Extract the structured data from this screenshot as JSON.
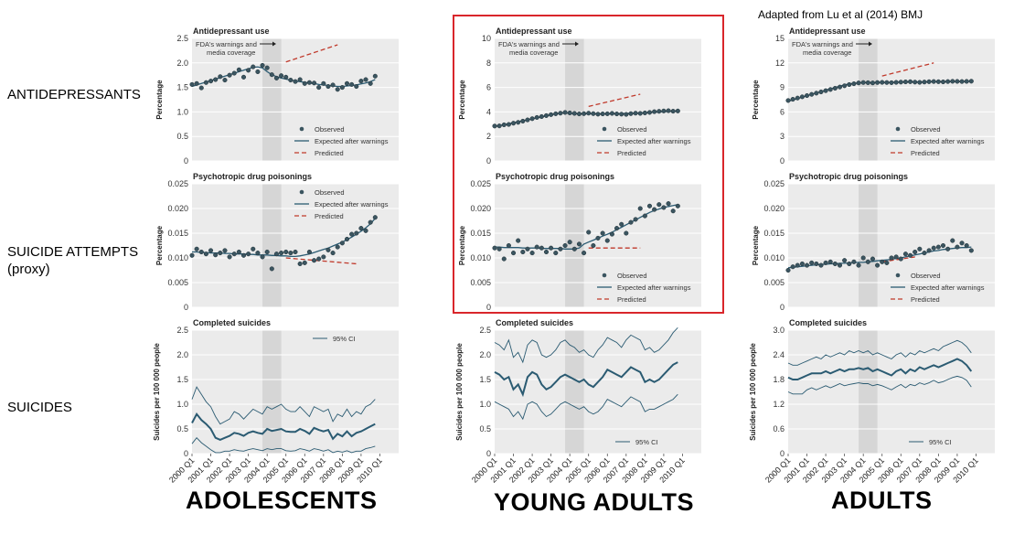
{
  "credit": "Adapted from  Lu et al (2014) BMJ",
  "row_labels": {
    "antidepressants": "ANTIDEPRESSANTS",
    "attempts_line1": "SUICIDE ATTEMPTS",
    "attempts_line2": "(proxy)",
    "suicides": "SUICIDES"
  },
  "column_labels": {
    "adolescents": "ADOLESCENTS",
    "young_adults": "YOUNG ADULTS",
    "adults": "ADULTS"
  },
  "annotation": {
    "line1": "FDA's warnings and",
    "line2": "media coverage"
  },
  "legend": {
    "observed": "Observed",
    "expected": "Expected after warnings",
    "predicted": "Predicted",
    "ci": "95% CI"
  },
  "time_axis": {
    "ticks": [
      "2000 Q1",
      "2001 Q1",
      "2002 Q1",
      "2003 Q1",
      "2004 Q1",
      "2005 Q1",
      "2006 Q1",
      "2007 Q1",
      "2008 Q1",
      "2009 Q1",
      "2010 Q1"
    ]
  },
  "colors": {
    "panel_bg": "#ebebeb",
    "warning_band": "#d6d6d6",
    "observed": "#3b5560",
    "expected": "#2b5b72",
    "predicted": "#c0392b",
    "highlight": "#d9262b"
  },
  "chart_data": [
    {
      "type": "scatter",
      "group": "adolescents",
      "panel": "antidepressants",
      "title": "Antidepressant use",
      "ylabel": "Percentage",
      "ylim": [
        0,
        2.5
      ],
      "yticks": [
        "0",
        "0.5",
        "1.0",
        "1.5",
        "2.0",
        "2.5"
      ],
      "warning_period": [
        2003.75,
        2004.75
      ],
      "observed": [
        1.56,
        1.58,
        1.49,
        1.6,
        1.63,
        1.66,
        1.72,
        1.65,
        1.75,
        1.79,
        1.86,
        1.71,
        1.85,
        1.92,
        1.82,
        1.95,
        1.9,
        1.76,
        1.69,
        1.74,
        1.71,
        1.65,
        1.62,
        1.66,
        1.58,
        1.6,
        1.59,
        1.5,
        1.58,
        1.52,
        1.55,
        1.46,
        1.5,
        1.58,
        1.56,
        1.52,
        1.63,
        1.66,
        1.58,
        1.73
      ],
      "expected": [
        1.52,
        1.55,
        1.58,
        1.61,
        1.64,
        1.67,
        1.7,
        1.73,
        1.76,
        1.79,
        1.82,
        1.85,
        1.88,
        1.91,
        1.92,
        1.9,
        1.82,
        1.76,
        1.72,
        1.69,
        1.67,
        1.65,
        1.63,
        1.62,
        1.6,
        1.59,
        1.58,
        1.56,
        1.55,
        1.54,
        1.53,
        1.52,
        1.52,
        1.53,
        1.54,
        1.55,
        1.57,
        1.59,
        1.62,
        1.66
      ],
      "predicted": {
        "x": [
          2005.0,
          2007.75
        ],
        "y": [
          2.02,
          2.37
        ]
      },
      "legend": "bottom-right"
    },
    {
      "type": "scatter",
      "group": "young_adults",
      "panel": "antidepressants",
      "title": "Antidepressant use",
      "ylabel": "Percentage",
      "ylim": [
        0,
        10
      ],
      "yticks": [
        "0",
        "2",
        "4",
        "6",
        "8",
        "10"
      ],
      "warning_period": [
        2003.75,
        2004.75
      ],
      "observed": [
        2.85,
        2.86,
        2.95,
        2.98,
        3.08,
        3.15,
        3.25,
        3.35,
        3.45,
        3.55,
        3.62,
        3.7,
        3.78,
        3.85,
        3.9,
        3.96,
        3.92,
        3.88,
        3.84,
        3.86,
        3.9,
        3.86,
        3.82,
        3.84,
        3.85,
        3.88,
        3.84,
        3.82,
        3.8,
        3.86,
        3.9,
        3.88,
        3.92,
        3.96,
        4.02,
        4.05,
        4.08,
        4.1,
        4.06,
        4.08
      ],
      "expected": [
        2.8,
        2.88,
        2.96,
        3.04,
        3.12,
        3.2,
        3.28,
        3.36,
        3.44,
        3.52,
        3.6,
        3.68,
        3.76,
        3.84,
        3.9,
        3.92,
        3.88,
        3.86,
        3.84,
        3.84,
        3.84,
        3.84,
        3.84,
        3.84,
        3.84,
        3.85,
        3.86,
        3.87,
        3.88,
        3.89,
        3.9,
        3.92,
        3.94,
        3.96,
        3.98,
        4.0,
        4.02,
        4.04,
        4.06,
        4.08
      ],
      "predicted": {
        "x": [
          2005.0,
          2007.75
        ],
        "y": [
          4.45,
          5.45
        ]
      },
      "legend": "bottom-right"
    },
    {
      "type": "scatter",
      "group": "adults",
      "panel": "antidepressants",
      "title": "Antidepressant use",
      "ylabel": "Percentage",
      "ylim": [
        0,
        15
      ],
      "yticks": [
        "0",
        "3",
        "6",
        "9",
        "12",
        "15"
      ],
      "warning_period": [
        2003.75,
        2004.75
      ],
      "observed": [
        7.4,
        7.55,
        7.7,
        7.85,
        8.0,
        8.15,
        8.3,
        8.45,
        8.6,
        8.75,
        8.9,
        9.05,
        9.2,
        9.35,
        9.45,
        9.55,
        9.6,
        9.58,
        9.55,
        9.6,
        9.62,
        9.6,
        9.58,
        9.62,
        9.65,
        9.68,
        9.7,
        9.65,
        9.62,
        9.66,
        9.7,
        9.72,
        9.7,
        9.68,
        9.72,
        9.75,
        9.74,
        9.72,
        9.74,
        9.76
      ],
      "expected": [
        7.3,
        7.47,
        7.64,
        7.81,
        7.98,
        8.15,
        8.32,
        8.49,
        8.66,
        8.83,
        9.0,
        9.15,
        9.3,
        9.42,
        9.5,
        9.56,
        9.58,
        9.58,
        9.59,
        9.6,
        9.61,
        9.62,
        9.63,
        9.64,
        9.65,
        9.66,
        9.66,
        9.66,
        9.66,
        9.67,
        9.68,
        9.69,
        9.7,
        9.7,
        9.71,
        9.72,
        9.72,
        9.73,
        9.74,
        9.75
      ],
      "predicted": {
        "x": [
          2005.0,
          2007.75
        ],
        "y": [
          10.4,
          12.0
        ]
      },
      "legend": "bottom-right"
    },
    {
      "type": "scatter",
      "group": "adolescents",
      "panel": "poisonings",
      "title": "Psychotropic drug poisonings",
      "ylabel": "Percentage",
      "ylim": [
        0,
        0.025
      ],
      "yticks": [
        "0",
        "0.005",
        "0.010",
        "0.015",
        "0.020",
        "0.025"
      ],
      "warning_period": [
        2003.75,
        2004.75
      ],
      "observed": [
        0.0105,
        0.0118,
        0.0112,
        0.0108,
        0.0115,
        0.0106,
        0.011,
        0.0115,
        0.0102,
        0.0108,
        0.0112,
        0.0105,
        0.0108,
        0.0118,
        0.011,
        0.0102,
        0.0112,
        0.0078,
        0.0108,
        0.011,
        0.0112,
        0.011,
        0.0112,
        0.0088,
        0.009,
        0.0112,
        0.0095,
        0.0098,
        0.0102,
        0.0116,
        0.011,
        0.0122,
        0.013,
        0.0138,
        0.0148,
        0.015,
        0.016,
        0.0155,
        0.0172,
        0.0182
      ],
      "expected": [
        0.0112,
        0.0112,
        0.0111,
        0.0111,
        0.011,
        0.011,
        0.011,
        0.0109,
        0.0109,
        0.0108,
        0.0108,
        0.0108,
        0.0107,
        0.0107,
        0.0106,
        0.0106,
        0.0106,
        0.0105,
        0.0105,
        0.0104,
        0.0104,
        0.0103,
        0.0103,
        0.0104,
        0.0106,
        0.0108,
        0.0111,
        0.0114,
        0.0117,
        0.012,
        0.0124,
        0.0128,
        0.0132,
        0.0137,
        0.0142,
        0.0148,
        0.0154,
        0.0161,
        0.0169,
        0.018
      ],
      "predicted": {
        "x": [
          2005.0,
          2008.75
        ],
        "y": [
          0.01,
          0.0088
        ]
      },
      "legend": "top-right"
    },
    {
      "type": "scatter",
      "group": "young_adults",
      "panel": "poisonings",
      "title": "Psychotropic drug poisonings",
      "ylabel": "Percentage",
      "ylim": [
        0,
        0.025
      ],
      "yticks": [
        "0",
        "0.005",
        "0.010",
        "0.015",
        "0.020",
        "0.025"
      ],
      "warning_period": [
        2003.75,
        2004.75
      ],
      "observed": [
        0.012,
        0.0118,
        0.0098,
        0.0125,
        0.011,
        0.0135,
        0.0112,
        0.0118,
        0.011,
        0.0122,
        0.012,
        0.0112,
        0.012,
        0.011,
        0.0118,
        0.0125,
        0.0132,
        0.0118,
        0.0128,
        0.011,
        0.0152,
        0.0125,
        0.014,
        0.015,
        0.0135,
        0.0148,
        0.016,
        0.0168,
        0.015,
        0.0172,
        0.0178,
        0.02,
        0.0185,
        0.0205,
        0.0198,
        0.0208,
        0.0202,
        0.021,
        0.0195,
        0.0205
      ],
      "expected": [
        0.0122,
        0.0122,
        0.0121,
        0.0121,
        0.0121,
        0.0121,
        0.012,
        0.012,
        0.012,
        0.012,
        0.0119,
        0.0119,
        0.0119,
        0.0119,
        0.0119,
        0.0118,
        0.0118,
        0.0118,
        0.012,
        0.0128,
        0.0132,
        0.0136,
        0.014,
        0.0144,
        0.0148,
        0.0152,
        0.0157,
        0.0162,
        0.0167,
        0.0172,
        0.0177,
        0.0182,
        0.0187,
        0.0192,
        0.0196,
        0.0199,
        0.0202,
        0.0204,
        0.0206,
        0.0208
      ],
      "predicted": {
        "x": [
          2005.0,
          2007.75
        ],
        "y": [
          0.012,
          0.012
        ]
      },
      "legend": "bottom-right"
    },
    {
      "type": "scatter",
      "group": "adults",
      "panel": "poisonings",
      "title": "Psychotropic drug poisonings",
      "ylabel": "Percentage",
      "ylim": [
        0,
        0.025
      ],
      "yticks": [
        "0",
        "0.005",
        "0.010",
        "0.015",
        "0.020",
        "0.025"
      ],
      "warning_period": [
        2003.75,
        2004.75
      ],
      "observed": [
        0.0075,
        0.0082,
        0.0085,
        0.0088,
        0.0085,
        0.009,
        0.0088,
        0.0085,
        0.009,
        0.0092,
        0.0088,
        0.0085,
        0.0095,
        0.0088,
        0.0092,
        0.0085,
        0.01,
        0.0092,
        0.0098,
        0.0085,
        0.0092,
        0.009,
        0.01,
        0.0102,
        0.0098,
        0.0108,
        0.0105,
        0.0112,
        0.0118,
        0.011,
        0.0115,
        0.012,
        0.0122,
        0.0125,
        0.0118,
        0.0135,
        0.0122,
        0.013,
        0.0125,
        0.0115
      ],
      "expected": [
        0.008,
        0.0081,
        0.0082,
        0.0083,
        0.0084,
        0.0085,
        0.0086,
        0.0087,
        0.0087,
        0.0088,
        0.0088,
        0.0089,
        0.0089,
        0.009,
        0.009,
        0.0091,
        0.0091,
        0.0092,
        0.0093,
        0.0094,
        0.0095,
        0.0096,
        0.0097,
        0.0099,
        0.01,
        0.0102,
        0.0104,
        0.0106,
        0.0108,
        0.011,
        0.0112,
        0.0114,
        0.0115,
        0.0117,
        0.0118,
        0.0119,
        0.012,
        0.0121,
        0.0121,
        0.0122
      ],
      "predicted": {
        "x": [
          2005.0,
          2006.75
        ],
        "y": [
          0.0092,
          0.0102
        ]
      },
      "legend": "bottom-right"
    },
    {
      "type": "line",
      "group": "adolescents",
      "panel": "suicides",
      "title": "Completed suicides",
      "ylabel": "Suicides per 100 000 people",
      "ylim": [
        0,
        2.5
      ],
      "yticks": [
        "0",
        "0.5",
        "1.0",
        "1.5",
        "2.0",
        "2.5"
      ],
      "warning_period": [
        2003.75,
        2004.75
      ],
      "upper": [
        1.1,
        1.35,
        1.2,
        1.05,
        0.95,
        0.75,
        0.6,
        0.65,
        0.7,
        0.85,
        0.8,
        0.7,
        0.8,
        0.9,
        0.85,
        0.8,
        0.95,
        0.9,
        0.95,
        1.0,
        0.9,
        0.85,
        0.85,
        0.95,
        0.85,
        0.75,
        0.95,
        0.9,
        0.85,
        0.9,
        0.65,
        0.8,
        0.75,
        0.9,
        0.75,
        0.85,
        0.8,
        0.95,
        1.0,
        1.1
      ],
      "estimate": [
        0.62,
        0.8,
        0.68,
        0.6,
        0.5,
        0.32,
        0.28,
        0.32,
        0.36,
        0.42,
        0.4,
        0.36,
        0.42,
        0.45,
        0.42,
        0.4,
        0.5,
        0.46,
        0.48,
        0.5,
        0.45,
        0.44,
        0.44,
        0.5,
        0.46,
        0.4,
        0.52,
        0.48,
        0.45,
        0.48,
        0.3,
        0.4,
        0.35,
        0.45,
        0.35,
        0.42,
        0.45,
        0.5,
        0.55,
        0.6
      ],
      "lower": [
        0.2,
        0.32,
        0.22,
        0.15,
        0.08,
        0.02,
        0.02,
        0.05,
        0.05,
        0.08,
        0.06,
        0.05,
        0.08,
        0.1,
        0.08,
        0.06,
        0.1,
        0.08,
        0.1,
        0.1,
        0.06,
        0.05,
        0.06,
        0.1,
        0.08,
        0.05,
        0.1,
        0.08,
        0.05,
        0.08,
        0.02,
        0.05,
        0.03,
        0.06,
        0.02,
        0.05,
        0.05,
        0.1,
        0.12,
        0.15
      ],
      "legend": "top-right"
    },
    {
      "type": "line",
      "group": "young_adults",
      "panel": "suicides",
      "title": "Completed suicides",
      "ylabel": "Suicides per 100 000 people",
      "ylim": [
        0,
        2.5
      ],
      "yticks": [
        "0",
        "0.5",
        "1.0",
        "1.5",
        "2.0",
        "2.5"
      ],
      "warning_period": [
        2003.75,
        2004.75
      ],
      "upper": [
        2.25,
        2.2,
        2.1,
        2.3,
        1.95,
        2.05,
        1.85,
        2.2,
        2.3,
        2.25,
        2.0,
        1.95,
        2.0,
        2.1,
        2.25,
        2.3,
        2.2,
        2.15,
        2.05,
        2.1,
        2.0,
        1.95,
        2.1,
        2.2,
        2.35,
        2.3,
        2.25,
        2.15,
        2.3,
        2.4,
        2.35,
        2.3,
        2.1,
        2.15,
        2.05,
        2.1,
        2.2,
        2.3,
        2.45,
        2.55
      ],
      "estimate": [
        1.65,
        1.6,
        1.5,
        1.55,
        1.3,
        1.4,
        1.2,
        1.55,
        1.65,
        1.6,
        1.4,
        1.3,
        1.35,
        1.45,
        1.55,
        1.6,
        1.55,
        1.5,
        1.45,
        1.5,
        1.4,
        1.35,
        1.45,
        1.55,
        1.7,
        1.65,
        1.6,
        1.55,
        1.65,
        1.75,
        1.7,
        1.65,
        1.45,
        1.5,
        1.45,
        1.5,
        1.6,
        1.7,
        1.8,
        1.85
      ],
      "lower": [
        1.05,
        1.0,
        0.95,
        0.9,
        0.75,
        0.85,
        0.7,
        1.0,
        1.05,
        1.0,
        0.85,
        0.75,
        0.8,
        0.9,
        1.0,
        1.05,
        1.0,
        0.95,
        0.9,
        0.95,
        0.85,
        0.8,
        0.85,
        0.95,
        1.1,
        1.05,
        1.0,
        0.95,
        1.05,
        1.15,
        1.1,
        1.05,
        0.85,
        0.9,
        0.9,
        0.95,
        1.0,
        1.05,
        1.1,
        1.2
      ],
      "legend": "bottom-right"
    },
    {
      "type": "line",
      "group": "adults",
      "panel": "suicides",
      "title": "Completed suicides",
      "ylabel": "Suicides per 100 000 people",
      "ylim": [
        0,
        3.0
      ],
      "yticks": [
        "0",
        "0.6",
        "1.2",
        "1.8",
        "2.4",
        "3.0"
      ],
      "warning_period": [
        2003.75,
        2004.75
      ],
      "upper": [
        2.2,
        2.15,
        2.15,
        2.2,
        2.25,
        2.3,
        2.35,
        2.3,
        2.4,
        2.35,
        2.4,
        2.45,
        2.4,
        2.5,
        2.45,
        2.5,
        2.45,
        2.5,
        2.4,
        2.45,
        2.4,
        2.35,
        2.3,
        2.4,
        2.45,
        2.35,
        2.45,
        2.4,
        2.5,
        2.45,
        2.5,
        2.55,
        2.5,
        2.6,
        2.65,
        2.7,
        2.75,
        2.7,
        2.6,
        2.45
      ],
      "estimate": [
        1.85,
        1.8,
        1.8,
        1.85,
        1.9,
        1.95,
        1.95,
        1.95,
        2.0,
        1.95,
        2.0,
        2.05,
        2.0,
        2.05,
        2.05,
        2.08,
        2.05,
        2.08,
        2.0,
        2.05,
        2.0,
        1.95,
        1.9,
        2.0,
        2.05,
        1.95,
        2.05,
        2.0,
        2.1,
        2.05,
        2.1,
        2.15,
        2.1,
        2.15,
        2.2,
        2.25,
        2.3,
        2.25,
        2.15,
        2.0
      ],
      "lower": [
        1.5,
        1.45,
        1.45,
        1.45,
        1.55,
        1.6,
        1.55,
        1.6,
        1.65,
        1.6,
        1.65,
        1.7,
        1.65,
        1.68,
        1.7,
        1.72,
        1.7,
        1.7,
        1.65,
        1.68,
        1.65,
        1.6,
        1.55,
        1.62,
        1.68,
        1.6,
        1.68,
        1.65,
        1.72,
        1.68,
        1.72,
        1.78,
        1.72,
        1.75,
        1.8,
        1.85,
        1.88,
        1.85,
        1.78,
        1.62
      ],
      "legend": "bottom-right"
    }
  ]
}
